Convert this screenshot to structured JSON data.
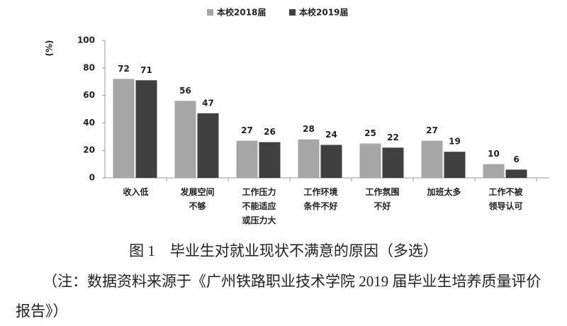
{
  "chart_data": {
    "type": "bar",
    "y_label": "(%)",
    "categories": [
      "收入低",
      "发展空间不够",
      "工作压力不能适应或压力大",
      "工作环境条件不好",
      "工作氛围不好",
      "加班太多",
      "工作不被领导认可"
    ],
    "series": [
      {
        "name": "本校2018届",
        "color": "#a6a6a6",
        "values": [
          72,
          56,
          27,
          28,
          25,
          27,
          10
        ]
      },
      {
        "name": "本校2019届",
        "color": "#404040",
        "values": [
          71,
          47,
          26,
          24,
          22,
          19,
          6
        ]
      }
    ],
    "ylim": [
      0,
      100
    ],
    "yticks": [
      0,
      20,
      40,
      60,
      80,
      100
    ]
  },
  "caption": {
    "title": "图 1　毕业生对就业现状不满意的原因（多选）",
    "note": "（注：数据资料来源于《广州铁路职业技术学院 2019 届毕业生培养质量评价报告》）"
  }
}
